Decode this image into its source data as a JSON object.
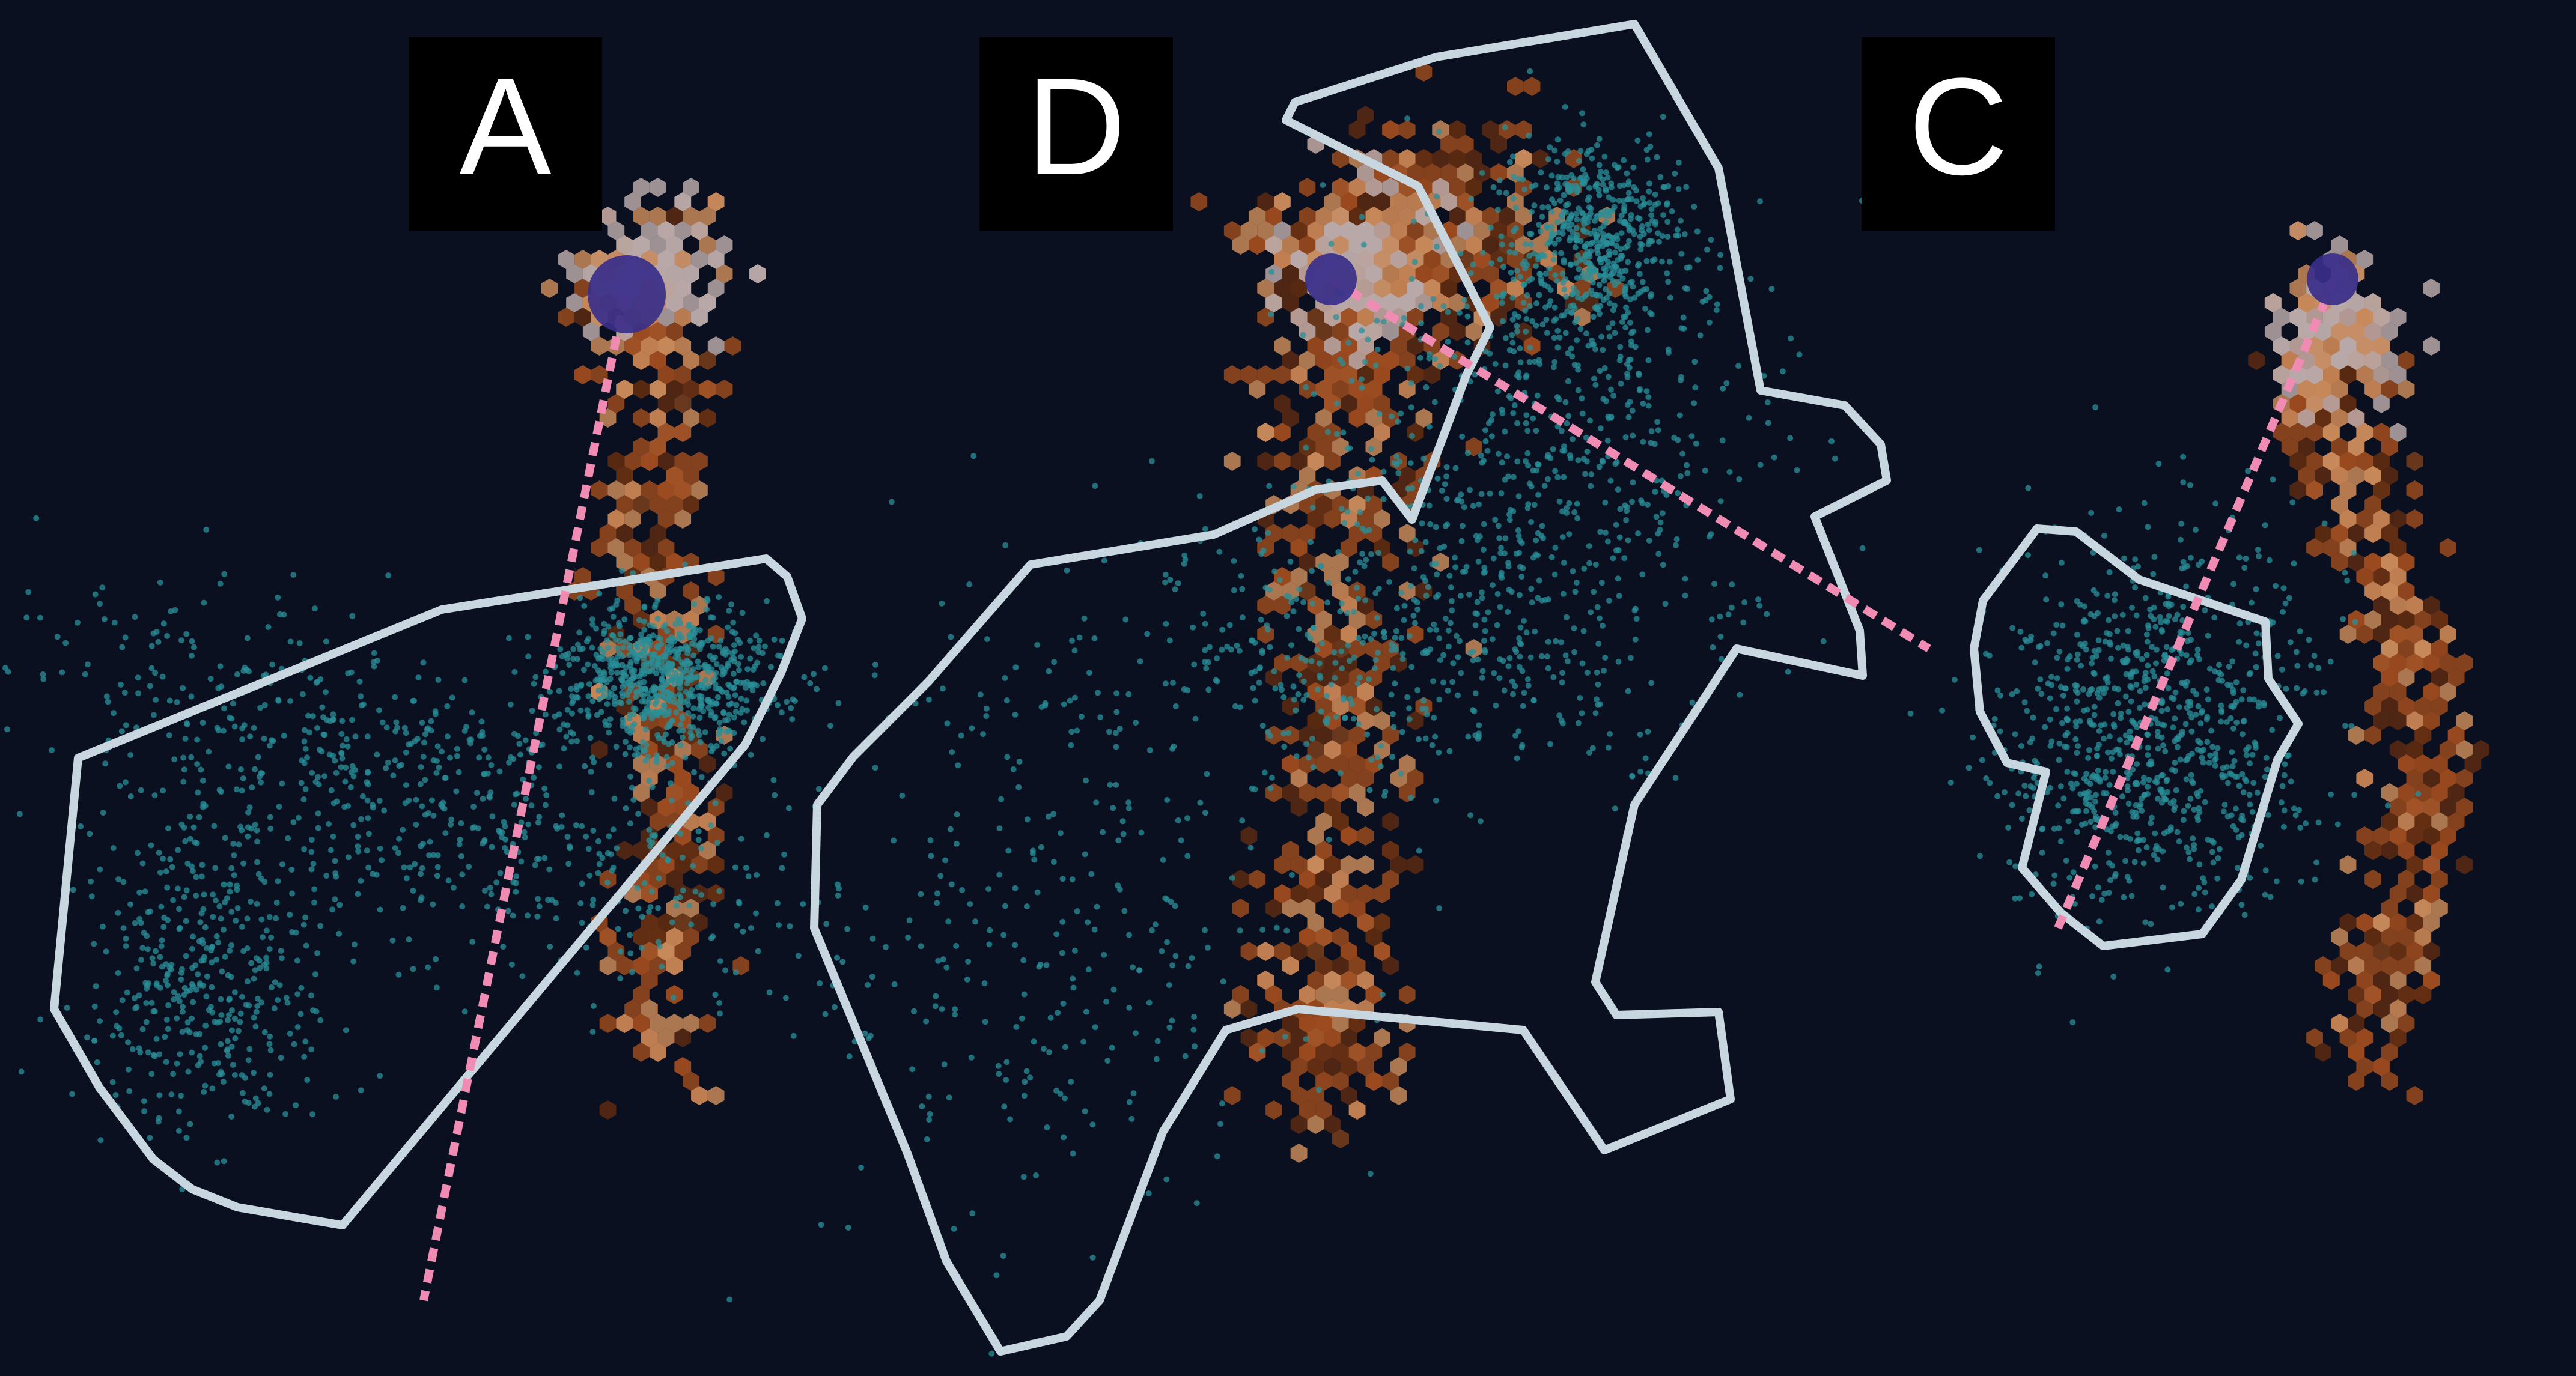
{
  "panels": [
    {
      "label": "A"
    },
    {
      "label": "D"
    },
    {
      "label": "C"
    }
  ],
  "colors": {
    "background": "#0a1020",
    "label_box": "#000000",
    "label_text": "#ffffff",
    "outline": "#c8d6e0",
    "trajectory": "#f08cb4",
    "scatter": "#2a8f98",
    "hex_dark": "#5a2a12",
    "hex_mid": "#9a4a1e",
    "hex_light": "#c88a5a",
    "hex_pale": "#b8a8a8",
    "origin_marker": "#3a2f8a"
  }
}
